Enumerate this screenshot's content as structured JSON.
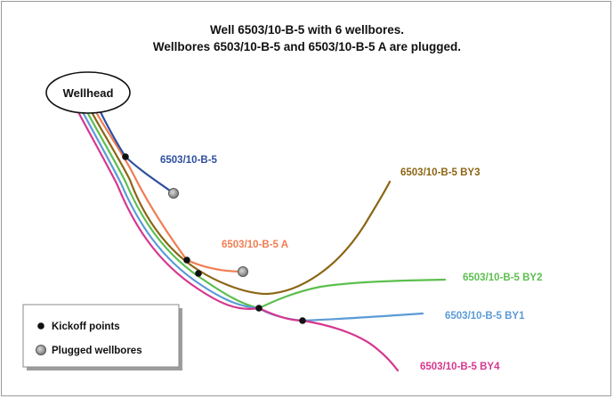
{
  "title": {
    "line1": "Well 6503/10-B-5 with 6 wellbores.",
    "line2": "Wellbores 6503/10-B-5 and 6503/10-B-5 A are plugged."
  },
  "wellhead": {
    "label": "Wellhead"
  },
  "wellbores": [
    {
      "label": "6503/10-B-5",
      "color": "#2f4fa0",
      "status": "plugged"
    },
    {
      "label": "6503/10-B-5 A",
      "color": "#f07d52",
      "status": "plugged"
    },
    {
      "label": "6503/10-B-5 BY3",
      "color": "#8c6514",
      "status": "open"
    },
    {
      "label": "6503/10-B-5 BY2",
      "color": "#5cbf4e",
      "status": "open"
    },
    {
      "label": "6503/10-B-5 BY1",
      "color": "#5b9bd5",
      "status": "open"
    },
    {
      "label": "6503/10-B-5 BY4",
      "color": "#d6378f",
      "status": "open"
    }
  ],
  "legend": {
    "kickoff_label": "Kickoff points",
    "plugged_label": "Plugged wellbores"
  },
  "colors": {
    "kickoff_dot": "#111111",
    "plugged_marker": "#8c8c8c"
  }
}
